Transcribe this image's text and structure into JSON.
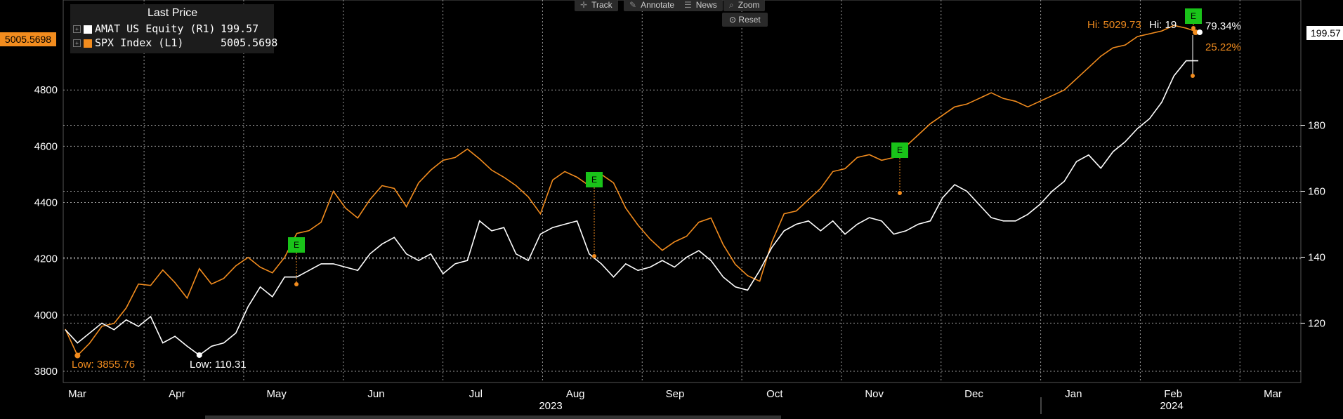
{
  "toolbar": {
    "track": "Track",
    "annotate": "Annotate",
    "news": "News",
    "zoom": "Zoom",
    "reset": "Reset"
  },
  "legend": {
    "header": "Last Price",
    "items": [
      {
        "label": "AMAT US Equity  (R1)",
        "value": "199.57",
        "color": "#ffffff"
      },
      {
        "label": "SPX Index  (L1)",
        "value": "5005.5698",
        "color": "#f28c1e"
      }
    ]
  },
  "tags": {
    "left_last": "5005.5698",
    "right_last": "199.57"
  },
  "annotations": {
    "spx_low": "Low: 3855.76",
    "amat_low": "Low: 110.31",
    "spx_hi": "Hi: 5029.73",
    "amat_hi": "Hi: 19",
    "amat_pct": "79.34%",
    "spx_pct": "25.22%",
    "earnings_marker": "E"
  },
  "chart_data": {
    "type": "line",
    "x_month_labels": [
      "Mar",
      "Apr",
      "May",
      "Jun",
      "Jul",
      "Aug",
      "Sep",
      "Oct",
      "Nov",
      "Dec",
      "Jan",
      "Feb",
      "Mar"
    ],
    "x_year_labels": [
      "2023",
      "2024"
    ],
    "y_left_ticks": [
      3800,
      4000,
      4200,
      4400,
      4600,
      4800
    ],
    "y_right_ticks": [
      120,
      140,
      160,
      180
    ],
    "y_left_range": [
      3760,
      5120
    ],
    "y_right_range": [
      102,
      218
    ],
    "grid": true,
    "legend_position": "top-left",
    "series": [
      {
        "name": "SPX Index  (L1)",
        "axis": "left",
        "color": "#f28c1e",
        "values": [
          3950,
          3856,
          3900,
          3960,
          3970,
          4025,
          4110,
          4105,
          4160,
          4115,
          4060,
          4165,
          4110,
          4130,
          4175,
          4205,
          4170,
          4150,
          4205,
          4290,
          4300,
          4330,
          4440,
          4380,
          4345,
          4410,
          4460,
          4450,
          4385,
          4470,
          4515,
          4550,
          4560,
          4590,
          4555,
          4515,
          4490,
          4460,
          4420,
          4360,
          4480,
          4510,
          4490,
          4460,
          4500,
          4470,
          4380,
          4320,
          4270,
          4230,
          4260,
          4280,
          4330,
          4345,
          4250,
          4180,
          4140,
          4120,
          4260,
          4360,
          4370,
          4410,
          4450,
          4510,
          4520,
          4560,
          4570,
          4550,
          4560,
          4600,
          4640,
          4680,
          4710,
          4740,
          4750,
          4770,
          4790,
          4770,
          4760,
          4740,
          4760,
          4780,
          4800,
          4840,
          4880,
          4920,
          4950,
          4960,
          4990,
          5000,
          5010,
          5029.73,
          5020,
          5005.5698
        ]
      },
      {
        "name": "AMAT US Equity  (R1)",
        "axis": "right",
        "color": "#ffffff",
        "values": [
          118,
          114,
          117,
          120,
          118,
          121,
          119,
          122,
          114,
          116,
          113,
          110.31,
          113,
          114,
          117,
          125,
          131,
          128,
          134,
          134,
          136,
          138,
          138,
          137,
          136,
          141,
          144,
          146,
          141,
          139,
          141,
          135,
          138,
          139,
          151,
          148,
          149,
          141,
          139,
          147,
          149,
          150,
          151,
          141,
          138,
          134,
          138,
          136,
          137,
          139,
          137,
          140,
          142,
          139,
          134,
          131,
          130,
          136,
          143,
          148,
          150,
          151,
          148,
          151,
          147,
          150,
          152,
          151,
          147,
          148,
          150,
          151,
          158,
          162,
          160,
          156,
          152,
          151,
          151,
          153,
          156,
          160,
          163,
          169,
          171,
          167,
          172,
          175,
          179,
          182,
          187,
          195,
          199.57,
          199.57
        ]
      }
    ]
  }
}
